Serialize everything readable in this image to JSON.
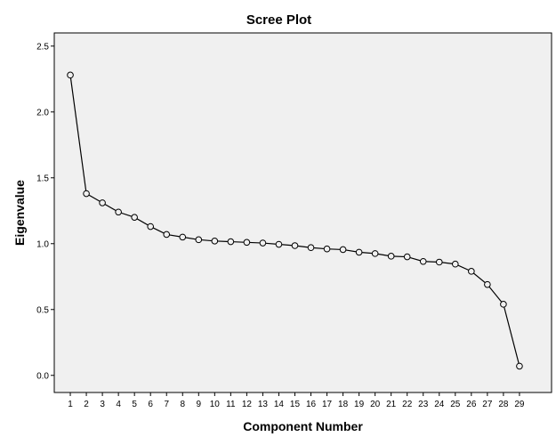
{
  "chart_data": {
    "type": "line",
    "title": "Scree Plot",
    "xlabel": "Component Number",
    "ylabel": "Eigenvalue",
    "x": [
      1,
      2,
      3,
      4,
      5,
      6,
      7,
      8,
      9,
      10,
      11,
      12,
      13,
      14,
      15,
      16,
      17,
      18,
      19,
      20,
      21,
      22,
      23,
      24,
      25,
      26,
      27,
      28,
      29
    ],
    "x_tick_labels": [
      "1",
      "2",
      "3",
      "4",
      "5",
      "6",
      "7",
      "8",
      "9",
      "10",
      "11",
      "12",
      "13",
      "14",
      "15",
      "16",
      "17",
      "18",
      "19",
      "20",
      "21",
      "22",
      "23",
      "24",
      "25",
      "26",
      "27",
      "28",
      "29"
    ],
    "series": [
      {
        "values": [
          2.28,
          1.38,
          1.31,
          1.24,
          1.2,
          1.13,
          1.07,
          1.05,
          1.03,
          1.02,
          1.015,
          1.01,
          1.005,
          0.995,
          0.985,
          0.97,
          0.96,
          0.955,
          0.935,
          0.925,
          0.905,
          0.9,
          0.865,
          0.86,
          0.845,
          0.79,
          0.69,
          0.54,
          0.07
        ]
      }
    ],
    "y_ticks": [
      0.0,
      0.5,
      1.0,
      1.5,
      2.0,
      2.5
    ],
    "y_tick_labels": [
      "0.0",
      "0.5",
      "1.0",
      "1.5",
      "2.0",
      "2.5"
    ],
    "ylim": [
      -0.13,
      2.6
    ],
    "xlim": [
      0,
      31
    ],
    "grid": false,
    "legend": "none",
    "colors": {
      "plot_background": "#f0f0f0",
      "line": "#000000",
      "marker_fill": "#f0f0f0",
      "frame": "#000000"
    }
  }
}
